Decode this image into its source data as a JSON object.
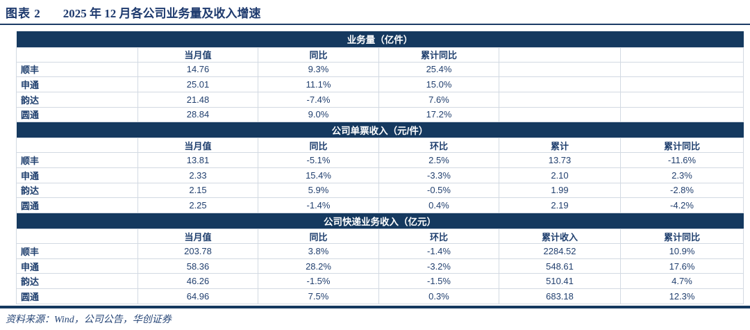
{
  "title": {
    "label": "图表 2",
    "text": "2025 年 12 月各公司业务量及收入增速"
  },
  "table": {
    "sections": [
      {
        "header": "业务量（亿件）",
        "columns": [
          "",
          "当月值",
          "同比",
          "累计同比",
          "",
          ""
        ],
        "rows": [
          [
            "顺丰",
            "14.76",
            "9.3%",
            "25.4%",
            "",
            ""
          ],
          [
            "申通",
            "25.01",
            "11.1%",
            "15.0%",
            "",
            ""
          ],
          [
            "韵达",
            "21.48",
            "-7.4%",
            "7.6%",
            "",
            ""
          ],
          [
            "圆通",
            "28.84",
            "9.0%",
            "17.2%",
            "",
            ""
          ]
        ]
      },
      {
        "header": "公司单票收入（元/件）",
        "columns": [
          "",
          "当月值",
          "同比",
          "环比",
          "累计",
          "累计同比"
        ],
        "rows": [
          [
            "顺丰",
            "13.81",
            "-5.1%",
            "2.5%",
            "13.73",
            "-11.6%"
          ],
          [
            "申通",
            "2.33",
            "15.4%",
            "-3.3%",
            "2.10",
            "2.3%"
          ],
          [
            "韵达",
            "2.15",
            "5.9%",
            "-0.5%",
            "1.99",
            "-2.8%"
          ],
          [
            "圆通",
            "2.25",
            "-1.4%",
            "0.4%",
            "2.19",
            "-4.2%"
          ]
        ]
      },
      {
        "header": "公司快递业务收入（亿元）",
        "columns": [
          "",
          "当月值",
          "同比",
          "环比",
          "累计收入",
          "累计同比"
        ],
        "rows": [
          [
            "顺丰",
            "203.78",
            "3.8%",
            "-1.4%",
            "2284.52",
            "10.9%"
          ],
          [
            "申通",
            "58.36",
            "28.2%",
            "-3.2%",
            "548.61",
            "17.6%"
          ],
          [
            "韵达",
            "46.26",
            "-1.5%",
            "-1.5%",
            "510.41",
            "4.7%"
          ],
          [
            "圆通",
            "64.96",
            "7.5%",
            "0.3%",
            "683.18",
            "12.3%"
          ]
        ]
      }
    ]
  },
  "footer": {
    "source": "资料来源：Wind，公司公告，华创证券"
  },
  "colors": {
    "section_bar": "#15395f",
    "header_text": "#1f3f6e",
    "data_text": "#22406f",
    "title_text": "#1e3a6e",
    "rule": "#1c3c66",
    "cell_border": "#d2d9e2"
  }
}
